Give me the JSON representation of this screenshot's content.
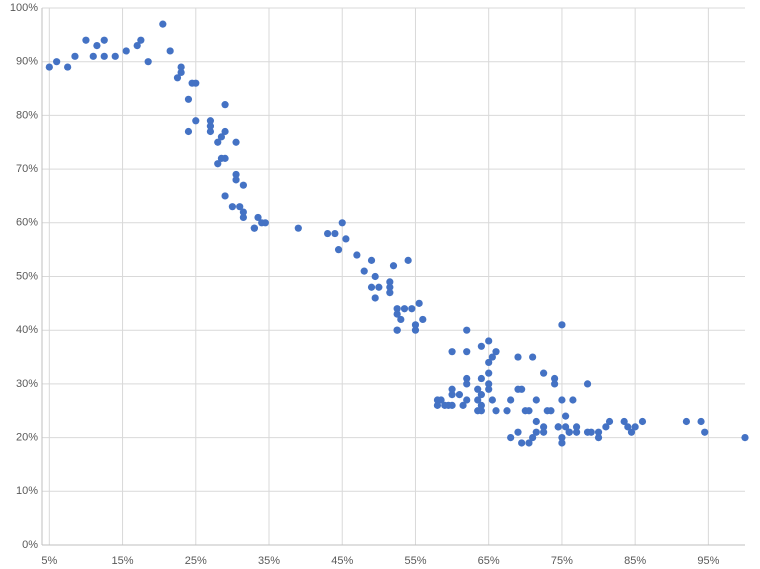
{
  "chart_data": {
    "type": "scatter",
    "color": "#4472c4",
    "grid": true,
    "xlim": [
      4,
      100
    ],
    "ylim": [
      0,
      100
    ],
    "xticks": [
      {
        "value": 5,
        "label": "5%"
      },
      {
        "value": 15,
        "label": "15%"
      },
      {
        "value": 25,
        "label": "25%"
      },
      {
        "value": 35,
        "label": "35%"
      },
      {
        "value": 45,
        "label": "45%"
      },
      {
        "value": 55,
        "label": "55%"
      },
      {
        "value": 65,
        "label": "65%"
      },
      {
        "value": 75,
        "label": "75%"
      },
      {
        "value": 85,
        "label": "85%"
      },
      {
        "value": 95,
        "label": "95%"
      }
    ],
    "yticks": [
      {
        "value": 0,
        "label": "0%"
      },
      {
        "value": 10,
        "label": "10%"
      },
      {
        "value": 20,
        "label": "20%"
      },
      {
        "value": 30,
        "label": "30%"
      },
      {
        "value": 40,
        "label": "40%"
      },
      {
        "value": 50,
        "label": "50%"
      },
      {
        "value": 60,
        "label": "60%"
      },
      {
        "value": 70,
        "label": "70%"
      },
      {
        "value": 80,
        "label": "80%"
      },
      {
        "value": 90,
        "label": "90%"
      },
      {
        "value": 100,
        "label": "100%"
      }
    ],
    "x": [
      5,
      6,
      7.5,
      8.5,
      10,
      11,
      11.5,
      12.5,
      12.5,
      14,
      15.5,
      17,
      17.5,
      18.5,
      20.5,
      21.5,
      22.5,
      23,
      23,
      24.5,
      25,
      24,
      25,
      24,
      29,
      27,
      27,
      27,
      29,
      28.5,
      28,
      30.5,
      28.5,
      29,
      28,
      30.5,
      30.5,
      31.5,
      29,
      30,
      31,
      31.5,
      31.5,
      33.5,
      34,
      34.5,
      33,
      33,
      39,
      43,
      44,
      45,
      45.5,
      44.5,
      47,
      49,
      48,
      49.5,
      49,
      50,
      49.5,
      51.5,
      51.5,
      51.5,
      52,
      54,
      55.5,
      52.5,
      53.5,
      54.5,
      52.5,
      53,
      56,
      55,
      55,
      52.5,
      52.5,
      58,
      58.5,
      58,
      59,
      60,
      60,
      59.5,
      60,
      60,
      61,
      61.5,
      62,
      62,
      62,
      62,
      62,
      63.5,
      63.5,
      63.5,
      64,
      64,
      64,
      64,
      65,
      64,
      65,
      65,
      65,
      65,
      65.5,
      66,
      65.5,
      66,
      67.5,
      68,
      68,
      69,
      69,
      69,
      69.5,
      69.5,
      70,
      70.5,
      71,
      71,
      71.5,
      70.5,
      71.5,
      71.5,
      72.5,
      73,
      72.5,
      72.5,
      73.5,
      74,
      74,
      74.5,
      75,
      75,
      75,
      75,
      75.5,
      75.5,
      76,
      76,
      76.5,
      77,
      77,
      78.5,
      78.5,
      79,
      80,
      80,
      81,
      81.5,
      83.5,
      84,
      84.5,
      85,
      86,
      92,
      94,
      94.5,
      100,
      74.5
    ],
    "values": [
      89,
      90,
      89,
      91,
      94,
      91,
      93,
      94,
      91,
      91,
      92,
      93,
      94,
      90,
      97,
      92,
      87,
      89,
      88,
      86,
      86,
      83,
      79,
      77,
      82,
      79,
      78,
      77,
      77,
      76,
      75,
      75,
      72,
      72,
      71,
      69,
      68,
      67,
      65,
      63,
      63,
      62,
      61,
      61,
      60,
      60,
      59,
      59,
      59,
      58,
      58,
      60,
      57,
      55,
      54,
      53,
      51,
      50,
      48,
      48,
      46,
      49,
      48,
      47,
      52,
      53,
      45,
      44,
      44,
      44,
      43,
      42,
      42,
      41,
      40,
      40,
      40,
      27,
      27,
      26,
      26,
      29,
      28,
      26,
      26,
      36,
      28,
      26,
      30,
      31,
      40,
      36,
      27,
      27,
      29,
      25,
      28,
      26,
      31,
      37,
      38,
      25,
      30,
      32,
      29,
      34,
      35,
      36,
      27,
      25,
      25,
      27,
      20,
      35,
      21,
      29,
      29,
      19,
      25,
      19,
      20,
      35,
      27,
      25,
      21,
      23,
      32,
      25,
      22,
      21,
      25,
      31,
      30,
      22,
      41,
      27,
      20,
      19,
      24,
      22,
      21,
      21,
      27,
      21,
      22,
      30,
      21,
      21,
      21,
      20,
      22,
      23,
      23,
      22,
      21,
      22,
      23,
      23,
      23,
      21,
      20,
      22
    ]
  }
}
